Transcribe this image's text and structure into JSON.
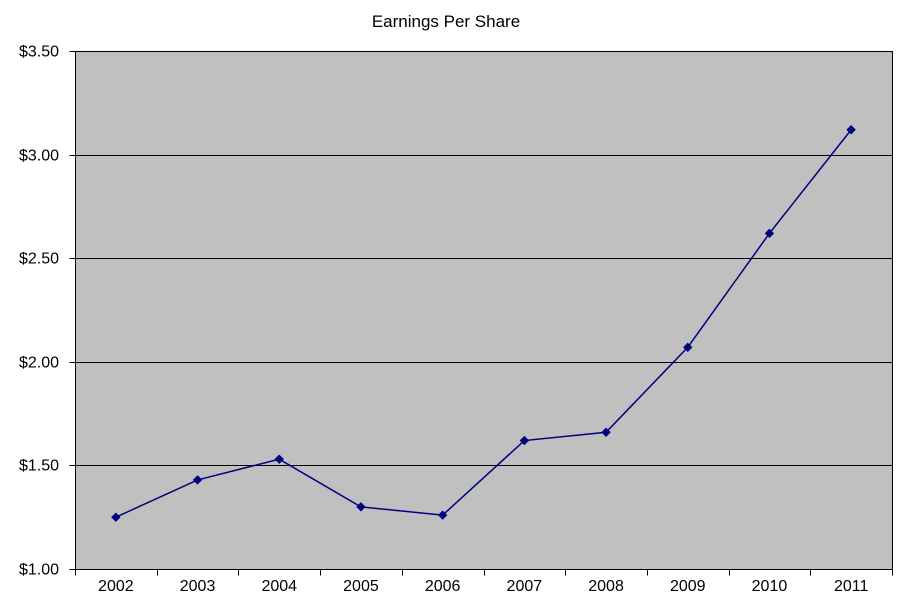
{
  "chart_data": {
    "type": "line",
    "title": "Earnings Per Share",
    "categories": [
      "2002",
      "2003",
      "2004",
      "2005",
      "2006",
      "2007",
      "2008",
      "2009",
      "2010",
      "2011"
    ],
    "series": [
      {
        "name": "Earnings Per Share",
        "values": [
          1.25,
          1.43,
          1.53,
          1.3,
          1.26,
          1.62,
          1.66,
          2.07,
          2.62,
          3.12
        ]
      }
    ],
    "y_ticks": [
      {
        "value": 3.5,
        "label": "$3.50"
      },
      {
        "value": 3.0,
        "label": "$3.00"
      },
      {
        "value": 2.5,
        "label": "$2.50"
      },
      {
        "value": 2.0,
        "label": "$2.00"
      },
      {
        "value": 1.5,
        "label": "$1.50"
      },
      {
        "value": 1.0,
        "label": "$1.00"
      }
    ],
    "ylim": [
      1.0,
      3.5
    ],
    "xlabel": "",
    "ylabel": "",
    "grid": true,
    "legend_position": "none",
    "marker": "diamond",
    "colors": {
      "line": "#000080",
      "marker": "#000080",
      "plot_background": "#C0C0C0",
      "gridline": "#000000",
      "axis": "#000000",
      "text": "#000000",
      "page_background": "#FFFFFF"
    }
  }
}
